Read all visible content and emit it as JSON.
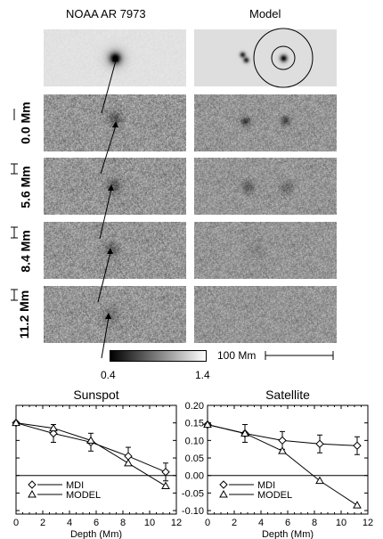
{
  "figure": {
    "left_title": "NOAA AR 7973",
    "right_title": "Model",
    "depths": [
      "0.0 Mm",
      "5.6 Mm",
      "8.4 Mm",
      "11.2 Mm"
    ],
    "colorbar_min": "0.4",
    "colorbar_max": "1.4",
    "scale_bar_label": "100 Mm"
  },
  "chart_data": [
    {
      "type": "line",
      "title": "Sunspot",
      "xlabel": "Depth (Mm)",
      "ylabel": "",
      "xlim": [
        0,
        12
      ],
      "xticks": [
        "0",
        "2",
        "4",
        "6",
        "8",
        "10",
        "12"
      ],
      "legend": "bottom-left",
      "series": [
        {
          "name": "MDI",
          "marker": "diamond",
          "x": [
            0,
            2.8,
            5.6,
            8.4,
            11.2
          ],
          "y": [
            0.15,
            0.12,
            0.095,
            0.055,
            0.01
          ]
        },
        {
          "name": "MODEL",
          "marker": "triangle",
          "x": [
            0,
            2.8,
            5.6,
            8.4,
            11.2
          ],
          "y": [
            0.15,
            0.135,
            0.1,
            0.035,
            -0.03
          ]
        }
      ]
    },
    {
      "type": "line",
      "title": "Satellite",
      "xlabel": "Depth (Mm)",
      "ylabel": "",
      "xlim": [
        0,
        12
      ],
      "ylim": [
        -0.11,
        0.2
      ],
      "xticks": [
        "0",
        "2",
        "4",
        "6",
        "8",
        "10",
        "12"
      ],
      "yticks": [
        "-0.10",
        "-0.05",
        "0.00",
        "0.05",
        "0.10",
        "0.15",
        "0.20"
      ],
      "legend": "bottom-left",
      "series": [
        {
          "name": "MDI",
          "marker": "diamond",
          "x": [
            0,
            2.8,
            5.6,
            8.4,
            11.2
          ],
          "y": [
            0.145,
            0.12,
            0.1,
            0.09,
            0.085
          ]
        },
        {
          "name": "MODEL",
          "marker": "triangle",
          "x": [
            0,
            2.8,
            5.6,
            8.4,
            11.2
          ],
          "y": [
            0.145,
            0.12,
            0.07,
            -0.015,
            -0.085
          ]
        }
      ]
    }
  ]
}
